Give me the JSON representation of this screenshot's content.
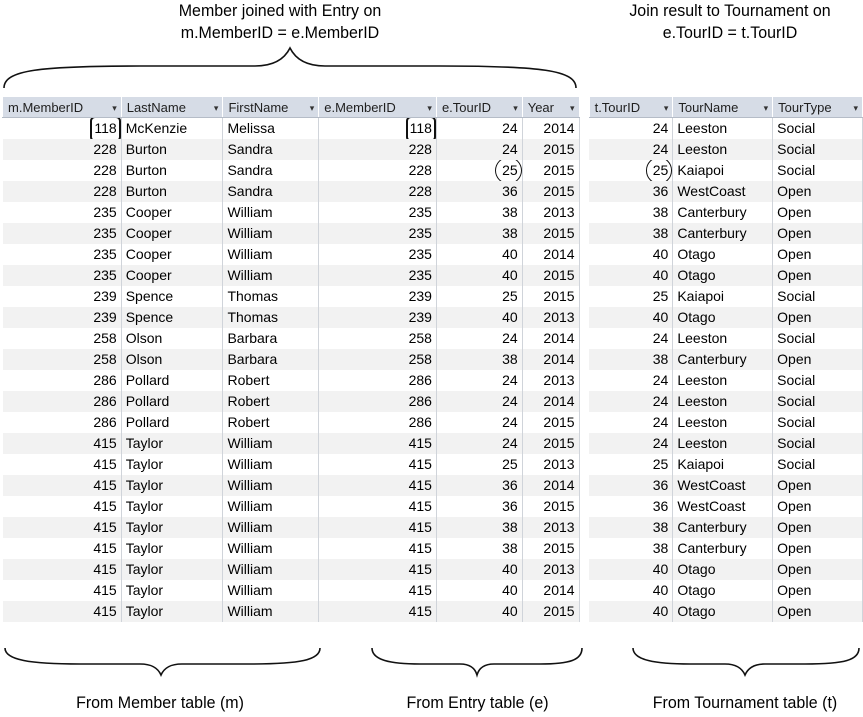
{
  "captions": {
    "join_member_entry": [
      "Member joined with Entry on",
      "m.MemberID = e.MemberID"
    ],
    "join_tournament": [
      "Join result to Tournament on",
      "e.TourID = t.TourID"
    ],
    "from_member": "From Member table (m)",
    "from_entry": "From Entry table (e)",
    "from_tournament": "From Tournament table (t)"
  },
  "columns": [
    {
      "label": "m.MemberID",
      "width": 119,
      "align": "num"
    },
    {
      "label": "LastName",
      "width": 102,
      "align": "text"
    },
    {
      "label": "FirstName",
      "width": 96,
      "align": "text"
    },
    {
      "label": "e.MemberID",
      "width": 118,
      "align": "num"
    },
    {
      "label": "e.TourID",
      "width": 86,
      "align": "num"
    },
    {
      "label": "Year",
      "width": 57,
      "align": "num"
    },
    {
      "label": "t.TourID",
      "width": 84,
      "align": "num"
    },
    {
      "label": "TourName",
      "width": 100,
      "align": "text"
    },
    {
      "label": "TourType",
      "width": 90,
      "align": "text"
    }
  ],
  "dropdown_glyph": "▾",
  "rows": [
    [
      "118",
      "McKenzie",
      "Melissa",
      "118",
      "24",
      "2014",
      "24",
      "Leeston",
      "Social"
    ],
    [
      "228",
      "Burton",
      "Sandra",
      "228",
      "24",
      "2015",
      "24",
      "Leeston",
      "Social"
    ],
    [
      "228",
      "Burton",
      "Sandra",
      "228",
      "25",
      "2015",
      "25",
      "Kaiapoi",
      "Social"
    ],
    [
      "228",
      "Burton",
      "Sandra",
      "228",
      "36",
      "2015",
      "36",
      "WestCoast",
      "Open"
    ],
    [
      "235",
      "Cooper",
      "William",
      "235",
      "38",
      "2013",
      "38",
      "Canterbury",
      "Open"
    ],
    [
      "235",
      "Cooper",
      "William",
      "235",
      "38",
      "2015",
      "38",
      "Canterbury",
      "Open"
    ],
    [
      "235",
      "Cooper",
      "William",
      "235",
      "40",
      "2014",
      "40",
      "Otago",
      "Open"
    ],
    [
      "235",
      "Cooper",
      "William",
      "235",
      "40",
      "2015",
      "40",
      "Otago",
      "Open"
    ],
    [
      "239",
      "Spence",
      "Thomas",
      "239",
      "25",
      "2015",
      "25",
      "Kaiapoi",
      "Social"
    ],
    [
      "239",
      "Spence",
      "Thomas",
      "239",
      "40",
      "2013",
      "40",
      "Otago",
      "Open"
    ],
    [
      "258",
      "Olson",
      "Barbara",
      "258",
      "24",
      "2014",
      "24",
      "Leeston",
      "Social"
    ],
    [
      "258",
      "Olson",
      "Barbara",
      "258",
      "38",
      "2014",
      "38",
      "Canterbury",
      "Open"
    ],
    [
      "286",
      "Pollard",
      "Robert",
      "286",
      "24",
      "2013",
      "24",
      "Leeston",
      "Social"
    ],
    [
      "286",
      "Pollard",
      "Robert",
      "286",
      "24",
      "2014",
      "24",
      "Leeston",
      "Social"
    ],
    [
      "286",
      "Pollard",
      "Robert",
      "286",
      "24",
      "2015",
      "24",
      "Leeston",
      "Social"
    ],
    [
      "415",
      "Taylor",
      "William",
      "415",
      "24",
      "2015",
      "24",
      "Leeston",
      "Social"
    ],
    [
      "415",
      "Taylor",
      "William",
      "415",
      "25",
      "2013",
      "25",
      "Kaiapoi",
      "Social"
    ],
    [
      "415",
      "Taylor",
      "William",
      "415",
      "36",
      "2014",
      "36",
      "WestCoast",
      "Open"
    ],
    [
      "415",
      "Taylor",
      "William",
      "415",
      "36",
      "2015",
      "36",
      "WestCoast",
      "Open"
    ],
    [
      "415",
      "Taylor",
      "William",
      "415",
      "38",
      "2013",
      "38",
      "Canterbury",
      "Open"
    ],
    [
      "415",
      "Taylor",
      "William",
      "415",
      "38",
      "2015",
      "38",
      "Canterbury",
      "Open"
    ],
    [
      "415",
      "Taylor",
      "William",
      "415",
      "40",
      "2013",
      "40",
      "Otago",
      "Open"
    ],
    [
      "415",
      "Taylor",
      "William",
      "415",
      "40",
      "2014",
      "40",
      "Otago",
      "Open"
    ],
    [
      "415",
      "Taylor",
      "William",
      "415",
      "40",
      "2015",
      "40",
      "Otago",
      "Open"
    ]
  ],
  "highlights": [
    {
      "row": 0,
      "col": 0,
      "shape": "box"
    },
    {
      "row": 0,
      "col": 3,
      "shape": "box"
    },
    {
      "row": 2,
      "col": 4,
      "shape": "circle"
    },
    {
      "row": 2,
      "col": 6,
      "shape": "circle"
    }
  ],
  "colors": {
    "header_bg": "#d6dce6",
    "alt_row_bg": "#f2f2f2",
    "annotation": "#111111"
  }
}
